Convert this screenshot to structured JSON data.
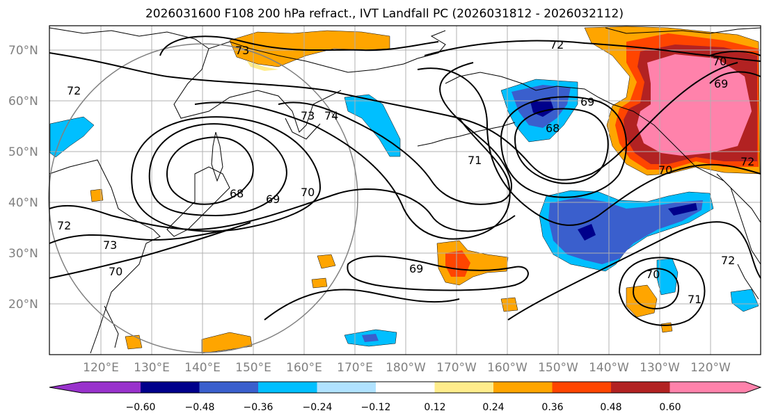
{
  "title": "2026031600 F108 200 hPa refract., IVT Landfall PC (2026031812 - 2026032112)",
  "lat_labels": [
    "70°N",
    "60°N",
    "50°N",
    "40°N",
    "30°N",
    "20°N"
  ],
  "lon_labels": [
    "120°E",
    "130°E",
    "140°E",
    "150°E",
    "160°E",
    "170°E",
    "180°W",
    "170°W",
    "160°W",
    "150°W",
    "140°W",
    "130°W",
    "120°W"
  ],
  "colorbar": {
    "ticks": [
      "−0.60",
      "−0.48",
      "−0.36",
      "−0.24",
      "−0.12",
      "0.12",
      "0.24",
      "0.36",
      "0.48",
      "0.60"
    ],
    "colors": [
      "#9932cc",
      "#00008b",
      "#3a5fcd",
      "#00bfff",
      "#b0e2ff",
      "#ffffff",
      "#ffec8b",
      "#ffa500",
      "#ff4500",
      "#b22222",
      "#ff82ab"
    ]
  },
  "contour_labels": [
    "73",
    "72",
    "72",
    "74",
    "73",
    "68",
    "69",
    "70",
    "72",
    "73",
    "70",
    "69",
    "71",
    "72",
    "70",
    "69",
    "68",
    "70",
    "71",
    "72",
    "70",
    "69"
  ],
  "colors": {
    "contour": "#000000",
    "coast": "#000000",
    "grid": "#b0b0b0",
    "circle": "#808080",
    "neg_light": "#b0e2ff",
    "neg_cyan": "#00bfff",
    "neg_blue": "#3a5fcd",
    "neg_navy": "#00008b",
    "pos_yellow": "#ffec8b",
    "pos_orange": "#ffa500",
    "pos_red": "#ff4500",
    "pos_darkred": "#b22222",
    "pos_pink": "#ff82ab"
  }
}
